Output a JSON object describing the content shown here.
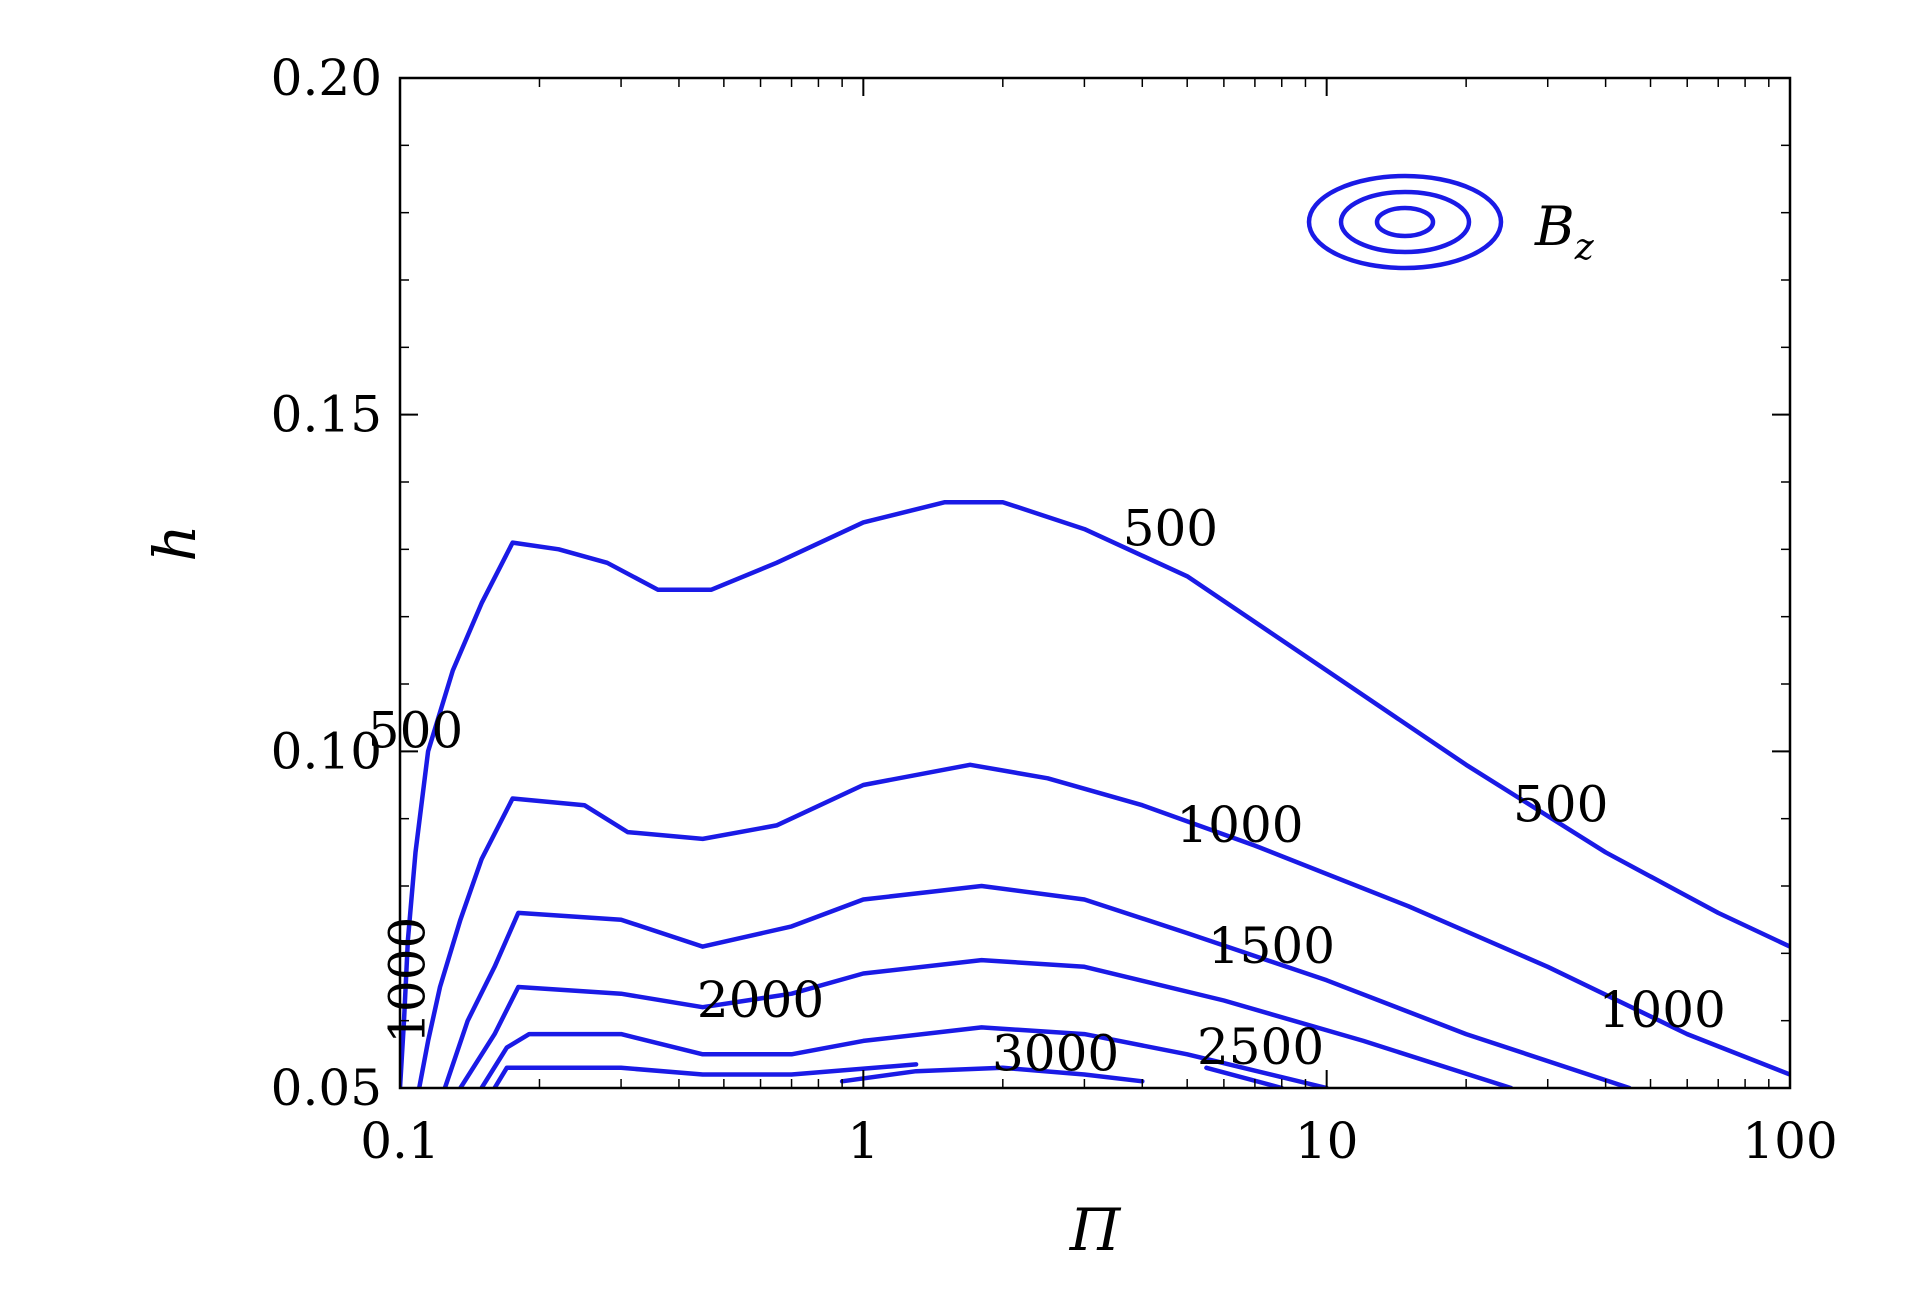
{
  "chart_data": {
    "type": "contour",
    "xlabel": "Π",
    "ylabel": "h",
    "x_scale": "log",
    "xlim": [
      0.1,
      100
    ],
    "ylim": [
      0.05,
      0.2
    ],
    "x_ticks": [
      0.1,
      1,
      10,
      100
    ],
    "x_tick_labels": [
      "0.1",
      "1",
      "10",
      "100"
    ],
    "y_ticks": [
      0.05,
      0.1,
      0.15,
      0.2
    ],
    "y_tick_labels": [
      "0.05",
      "0.10",
      "0.15",
      "0.20"
    ],
    "grid": false,
    "legend": {
      "label_main": "B",
      "label_sub": "z",
      "placement": "top-right"
    },
    "color": "#1a1ae6",
    "levels": [
      {
        "level": 500,
        "points": [
          [
            0.1,
            0.05
          ],
          [
            0.102,
            0.06
          ],
          [
            0.104,
            0.072
          ],
          [
            0.108,
            0.085
          ],
          [
            0.115,
            0.1
          ],
          [
            0.13,
            0.112
          ],
          [
            0.15,
            0.122
          ],
          [
            0.175,
            0.131
          ],
          [
            0.22,
            0.13
          ],
          [
            0.28,
            0.128
          ],
          [
            0.36,
            0.124
          ],
          [
            0.47,
            0.124
          ],
          [
            0.65,
            0.128
          ],
          [
            1.0,
            0.134
          ],
          [
            1.5,
            0.137
          ],
          [
            2.0,
            0.137
          ],
          [
            3.0,
            0.133
          ],
          [
            5.0,
            0.126
          ],
          [
            10,
            0.112
          ],
          [
            20,
            0.098
          ],
          [
            40,
            0.085
          ],
          [
            70,
            0.076
          ],
          [
            100,
            0.071
          ]
        ]
      },
      {
        "level": 1000,
        "points": [
          [
            0.11,
            0.05
          ],
          [
            0.115,
            0.057
          ],
          [
            0.122,
            0.065
          ],
          [
            0.135,
            0.075
          ],
          [
            0.15,
            0.084
          ],
          [
            0.175,
            0.093
          ],
          [
            0.25,
            0.092
          ],
          [
            0.31,
            0.088
          ],
          [
            0.45,
            0.087
          ],
          [
            0.65,
            0.089
          ],
          [
            1.0,
            0.095
          ],
          [
            1.7,
            0.098
          ],
          [
            2.5,
            0.096
          ],
          [
            4.0,
            0.092
          ],
          [
            7.0,
            0.086
          ],
          [
            15,
            0.077
          ],
          [
            30,
            0.068
          ],
          [
            60,
            0.058
          ],
          [
            100,
            0.052
          ]
        ]
      },
      {
        "level": 1500,
        "points": [
          [
            0.125,
            0.05
          ],
          [
            0.14,
            0.06
          ],
          [
            0.16,
            0.068
          ],
          [
            0.18,
            0.076
          ],
          [
            0.3,
            0.075
          ],
          [
            0.45,
            0.071
          ],
          [
            0.7,
            0.074
          ],
          [
            1.0,
            0.078
          ],
          [
            1.8,
            0.08
          ],
          [
            3.0,
            0.078
          ],
          [
            5.0,
            0.073
          ],
          [
            10,
            0.066
          ],
          [
            20,
            0.058
          ],
          [
            45,
            0.05
          ]
        ]
      },
      {
        "level": 2000,
        "points": [
          [
            0.135,
            0.05
          ],
          [
            0.16,
            0.058
          ],
          [
            0.18,
            0.065
          ],
          [
            0.3,
            0.064
          ],
          [
            0.45,
            0.062
          ],
          [
            0.7,
            0.064
          ],
          [
            1.0,
            0.067
          ],
          [
            1.8,
            0.069
          ],
          [
            3.0,
            0.068
          ],
          [
            6.0,
            0.063
          ],
          [
            12,
            0.057
          ],
          [
            25,
            0.05
          ]
        ]
      },
      {
        "level": 2500,
        "points": [
          [
            0.15,
            0.05
          ],
          [
            0.17,
            0.056
          ],
          [
            0.19,
            0.058
          ],
          [
            0.3,
            0.058
          ],
          [
            0.45,
            0.055
          ],
          [
            0.7,
            0.055
          ],
          [
            1.0,
            0.057
          ],
          [
            1.8,
            0.059
          ],
          [
            3.0,
            0.058
          ],
          [
            5.0,
            0.055
          ],
          [
            10,
            0.05
          ]
        ]
      },
      {
        "level": 2500,
        "points": [
          [
            5.5,
            0.053
          ],
          [
            8.0,
            0.05
          ]
        ]
      },
      {
        "level": 3000,
        "points": [
          [
            0.16,
            0.05
          ],
          [
            0.17,
            0.053
          ],
          [
            0.3,
            0.053
          ],
          [
            0.45,
            0.052
          ],
          [
            0.7,
            0.052
          ],
          [
            1.3,
            0.0535
          ]
        ]
      },
      {
        "level": 3000,
        "points": [
          [
            0.9,
            0.051
          ],
          [
            1.3,
            0.0525
          ],
          [
            2.0,
            0.053
          ],
          [
            3.0,
            0.052
          ],
          [
            4.0,
            0.051
          ]
        ]
      }
    ],
    "contour_labels": [
      {
        "text": "500",
        "x": 0.108,
        "y": 0.1025,
        "rotate": 0
      },
      {
        "text": "500",
        "x": 4.6,
        "y": 0.1325,
        "rotate": 0
      },
      {
        "text": "500",
        "x": 32,
        "y": 0.0915,
        "rotate": 0
      },
      {
        "text": "1000",
        "x": 0.106,
        "y": 0.066,
        "rotate": -90
      },
      {
        "text": "1000",
        "x": 6.5,
        "y": 0.0885,
        "rotate": 0
      },
      {
        "text": "1000",
        "x": 53,
        "y": 0.061,
        "rotate": 0
      },
      {
        "text": "1500",
        "x": 7.6,
        "y": 0.0705,
        "rotate": 0
      },
      {
        "text": "2000",
        "x": 0.6,
        "y": 0.0625,
        "rotate": 0
      },
      {
        "text": "2500",
        "x": 7.2,
        "y": 0.0555,
        "rotate": 0
      },
      {
        "text": "3000",
        "x": 2.6,
        "y": 0.0545,
        "rotate": 0
      }
    ]
  }
}
